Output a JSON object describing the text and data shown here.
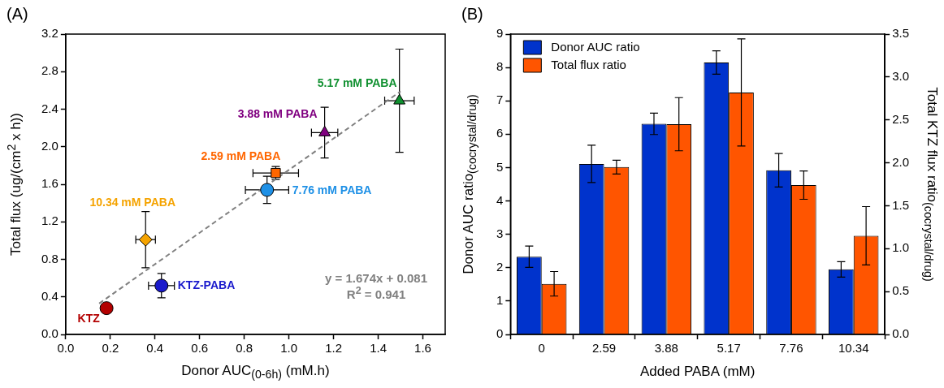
{
  "chart_data": [
    {
      "type": "scatter",
      "title": "(A)",
      "xlabel": "Donor AUC$_{(0-6h)}$ (mM.h)",
      "ylabel": "Total flux (ug/(cm$^{2}$ x h))",
      "xlim": [
        0,
        1.7
      ],
      "ylim": [
        0,
        3.2
      ],
      "xticks": [
        {
          "value": 0,
          "label": "0.0"
        },
        0.2,
        0.4,
        0.6,
        0.8,
        {
          "value": 1,
          "label": "1.0"
        },
        1.2,
        1.4,
        1.6
      ],
      "yticks": [
        {
          "value": 0,
          "label": "0.0"
        },
        0.4,
        0.8,
        1.2,
        1.6,
        {
          "value": 2,
          "label": "2.0"
        },
        2.4,
        2.8,
        3.2
      ],
      "annotations": [
        "y = 1.674x + 0.081",
        "R$^{2}$ = 0.941"
      ],
      "series": [
        {
          "name": "KTZ",
          "color": "#b30000",
          "marker": "circle",
          "x": [
            0.183
          ],
          "values": [
            0.28
          ]
        },
        {
          "name": "10.34 mM PABA",
          "color": "#f5a300",
          "marker": "diamond",
          "x": [
            0.358
          ],
          "values": [
            1.01
          ],
          "errors": [
            0.3
          ],
          "xerrors": [
            0.044
          ]
        },
        {
          "name": "KTZ-PABA",
          "color": "#1a1acc",
          "marker": "circle",
          "x": [
            0.429
          ],
          "values": [
            0.52
          ],
          "errors": [
            0.13
          ],
          "xerrors": [
            0.058
          ]
        },
        {
          "name": "7.76 mM PABA",
          "color": "#1e90e6",
          "marker": "circle",
          "x": [
            0.902
          ],
          "values": [
            1.54
          ],
          "errors": [
            0.145
          ],
          "xerrors": [
            0.097
          ]
        },
        {
          "name": "2.59 mM PABA",
          "color": "#ff6600",
          "marker": "square",
          "x": [
            0.941
          ],
          "values": [
            1.72
          ],
          "errors": [
            0.07
          ],
          "xerrors": [
            0.102
          ]
        },
        {
          "name": "3.88 mM PABA",
          "color": "#800080",
          "marker": "triangle",
          "x": [
            1.16
          ],
          "values": [
            2.15
          ],
          "errors": [
            0.27
          ],
          "xerrors": [
            0.059
          ]
        },
        {
          "name": "5.17 mM PABA",
          "color": "#109030",
          "marker": "triangle",
          "x": [
            1.495
          ],
          "values": [
            2.49
          ],
          "errors": [
            0.55
          ],
          "xerrors": [
            0.066
          ]
        },
        {
          "type": "line",
          "color": "#808080",
          "line_style": "dashed",
          "marker": "none",
          "x": [
            0.15,
            1.5
          ],
          "values": [
            0.33,
            2.59
          ]
        }
      ]
    },
    {
      "type": "bar",
      "title": "(B)",
      "xlabel": "Added PABA (mM)",
      "ylabel": "Donor AUC ratio$_{(cocrystal/drug)}$",
      "y2label": "Total KTZ flux ratio$_{(cocrystal/drug)}$",
      "categories": [
        "0",
        "2.59",
        "3.88",
        "5.17",
        "7.76",
        "10.34"
      ],
      "ylim": [
        0,
        9
      ],
      "yticks": [
        0,
        1,
        2,
        3,
        4,
        5,
        6,
        7,
        8,
        9
      ],
      "y2lim": [
        0,
        3.5
      ],
      "y2ticks": [
        {
          "value": 0,
          "label": "0.0"
        },
        0.5,
        {
          "value": 1,
          "label": "1.0"
        },
        1.5,
        {
          "value": 2,
          "label": "2.0"
        },
        2.5,
        {
          "value": 3,
          "label": "3.0"
        },
        3.5
      ],
      "legend": "top left",
      "series": [
        {
          "name": "Donor AUC ratio",
          "color": "#0033cc",
          "values": [
            2.33,
            5.11,
            6.31,
            8.15,
            4.92,
            1.95
          ],
          "errors": [
            0.32,
            0.56,
            0.32,
            0.35,
            0.5,
            0.23
          ]
        },
        {
          "name": "Total flux ratio",
          "color": "#ff5500",
          "axis": "y2",
          "values": [
            0.59,
            1.95,
            2.45,
            2.82,
            1.74,
            1.15
          ],
          "errors": [
            0.143,
            0.08,
            0.31,
            0.625,
            0.165,
            0.34
          ]
        }
      ]
    }
  ]
}
